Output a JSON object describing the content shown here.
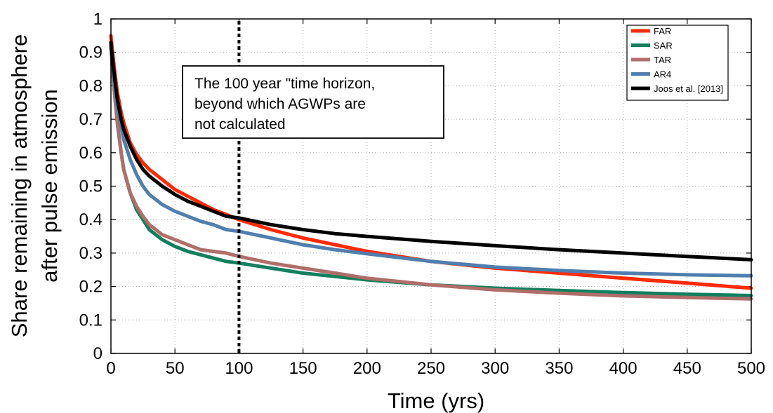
{
  "chart_data": {
    "type": "line",
    "title": "",
    "xlabel": "Time (yrs)",
    "ylabel_line1": "Share remaining in atmosphere",
    "ylabel_line2": "after pulse emission",
    "xlim": [
      0,
      500
    ],
    "ylim": [
      0,
      1
    ],
    "xticks": [
      0,
      50,
      100,
      150,
      200,
      250,
      300,
      350,
      400,
      450,
      500
    ],
    "yticks": [
      0,
      0.1,
      0.2,
      0.3,
      0.4,
      0.5,
      0.6,
      0.7,
      0.8,
      0.9,
      1
    ],
    "ytick_labels": [
      "0",
      "0.1",
      "0.2",
      "0.3",
      "0.4",
      "0.5",
      "0.6",
      "0.7",
      "0.8",
      "0.9",
      "1"
    ],
    "grid": true,
    "legend_position": "top-right",
    "x": [
      0,
      1,
      3,
      5,
      8,
      10,
      15,
      20,
      25,
      30,
      40,
      50,
      60,
      70,
      80,
      90,
      100,
      125,
      150,
      175,
      200,
      250,
      300,
      350,
      400,
      450,
      500
    ],
    "series": [
      {
        "name": "FAR",
        "color": "#ff2a00",
        "values": [
          0.95,
          0.91,
          0.84,
          0.78,
          0.72,
          0.69,
          0.63,
          0.595,
          0.57,
          0.55,
          0.52,
          0.49,
          0.47,
          0.45,
          0.43,
          0.415,
          0.4,
          0.37,
          0.345,
          0.325,
          0.305,
          0.275,
          0.255,
          0.24,
          0.225,
          0.21,
          0.195
        ]
      },
      {
        "name": "SAR",
        "color": "#117f5e",
        "values": [
          0.92,
          0.86,
          0.77,
          0.69,
          0.6,
          0.55,
          0.48,
          0.43,
          0.4,
          0.37,
          0.34,
          0.32,
          0.305,
          0.295,
          0.285,
          0.275,
          0.27,
          0.255,
          0.24,
          0.23,
          0.22,
          0.205,
          0.195,
          0.188,
          0.182,
          0.177,
          0.173
        ]
      },
      {
        "name": "TAR",
        "color": "#b06e6a",
        "values": [
          0.92,
          0.86,
          0.77,
          0.69,
          0.6,
          0.55,
          0.48,
          0.44,
          0.41,
          0.385,
          0.355,
          0.34,
          0.325,
          0.31,
          0.305,
          0.3,
          0.29,
          0.27,
          0.255,
          0.24,
          0.225,
          0.205,
          0.19,
          0.18,
          0.172,
          0.167,
          0.163
        ]
      },
      {
        "name": "AR4",
        "color": "#4f7fae",
        "values": [
          0.93,
          0.88,
          0.8,
          0.74,
          0.68,
          0.64,
          0.58,
          0.535,
          0.5,
          0.475,
          0.445,
          0.425,
          0.41,
          0.395,
          0.385,
          0.37,
          0.365,
          0.345,
          0.325,
          0.31,
          0.298,
          0.275,
          0.258,
          0.248,
          0.24,
          0.235,
          0.232
        ]
      },
      {
        "name": "Joos et al. [2013]",
        "color": "#000000",
        "values": [
          0.93,
          0.89,
          0.82,
          0.76,
          0.7,
          0.67,
          0.62,
          0.58,
          0.55,
          0.53,
          0.5,
          0.475,
          0.455,
          0.44,
          0.425,
          0.41,
          0.405,
          0.385,
          0.37,
          0.358,
          0.35,
          0.335,
          0.322,
          0.31,
          0.3,
          0.29,
          0.28
        ]
      }
    ],
    "annotations": {
      "vline_x": 100,
      "text_lines": [
        "The 100 year \"time horizon,",
        "beyond which AGWPs are",
        "not calculated"
      ]
    }
  }
}
